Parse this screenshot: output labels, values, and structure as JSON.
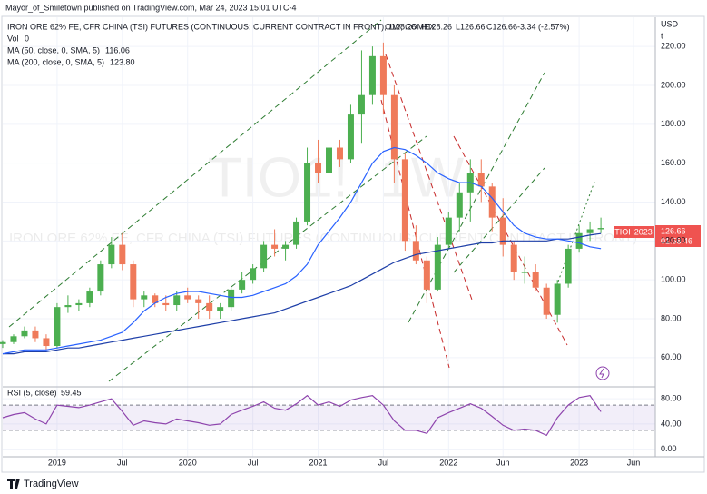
{
  "header": {
    "published": "Mayor_of_Smiletown published on TradingView.com, Mar 24, 2023 15:01 UTC-4",
    "legend_title": "IRON ORE 62% FE, CFR CHINA (TSI) FUTURES (CONTINUOUS: CURRENT CONTRACT IN FRONT), 1W, COMEX",
    "open": "O128.26",
    "high": "H128.26",
    "low": "L126.66",
    "close": "C126.66",
    "change": "-3.34 (-2.57%)",
    "vol_label": "Vol",
    "vol_value": "0",
    "ma50_label": "MA (50, close, 0, SMA, 5)",
    "ma50_value": "116.06",
    "ma200_label": "MA (200, close, 0, SMA, 5)",
    "ma200_value": "123.80",
    "rsi_label": "RSI (5, close)",
    "rsi_value": "59.45",
    "currency": "USD",
    "currency_sub": "t",
    "contract": "TIOH2023",
    "countdown": "01:58:46",
    "watermark_symbol": "TIO1!, 1W",
    "watermark_description": "IRON ORE 62% FE, CFR CHINA (TSI) FUTURES (CONTINUOUS: CURRENT CONTRACT IN FRONT)"
  },
  "footer": {
    "brand": "TradingView"
  },
  "chart_data": {
    "type": "candlestick",
    "up_color": "#4caf50",
    "down_color": "#ef7a5a",
    "ma50_color": "#2962ff",
    "ma200_color": "#1e3fa8",
    "rsi_color": "#8e44ad",
    "x": [
      "2018-08",
      "2018-09",
      "2018-10",
      "2018-11",
      "2018-12",
      "2019-01",
      "2019-02",
      "2019-03",
      "2019-04",
      "2019-05",
      "2019-06",
      "2019-07",
      "2019-08",
      "2019-09",
      "2019-10",
      "2019-11",
      "2019-12",
      "2020-01",
      "2020-02",
      "2020-03",
      "2020-04",
      "2020-05",
      "2020-06",
      "2020-07",
      "2020-08",
      "2020-09",
      "2020-10",
      "2020-11",
      "2020-12",
      "2021-01",
      "2021-02",
      "2021-03",
      "2021-04",
      "2021-05",
      "2021-06",
      "2021-07",
      "2021-08",
      "2021-09",
      "2021-10",
      "2021-11",
      "2021-12",
      "2022-01",
      "2022-02",
      "2022-03",
      "2022-04",
      "2022-05",
      "2022-06",
      "2022-07",
      "2022-08",
      "2022-09",
      "2022-10",
      "2022-11",
      "2022-12",
      "2023-01",
      "2023-02",
      "2023-03"
    ],
    "open": [
      67,
      68,
      71,
      74,
      70,
      66,
      86,
      87,
      88,
      94,
      108,
      118,
      108,
      90,
      92,
      88,
      87,
      92,
      90,
      88,
      84,
      86,
      95,
      100,
      106,
      118,
      116,
      118,
      130,
      160,
      155,
      168,
      162,
      185,
      195,
      215,
      195,
      162,
      120,
      110,
      95,
      118,
      132,
      145,
      155,
      148,
      132,
      118,
      104,
      104,
      96,
      82,
      98,
      116,
      124,
      126
    ],
    "high": [
      69,
      72,
      76,
      76,
      72,
      88,
      92,
      90,
      96,
      110,
      122,
      124,
      110,
      94,
      93,
      92,
      94,
      96,
      92,
      92,
      88,
      96,
      104,
      108,
      120,
      126,
      120,
      132,
      168,
      172,
      172,
      172,
      190,
      218,
      220,
      222,
      200,
      165,
      128,
      112,
      122,
      135,
      150,
      162,
      162,
      150,
      142,
      120,
      112,
      108,
      98,
      100,
      118,
      128,
      130,
      132
    ],
    "low": [
      65,
      67,
      70,
      68,
      64,
      65,
      83,
      84,
      86,
      92,
      106,
      105,
      86,
      86,
      86,
      84,
      84,
      88,
      80,
      80,
      80,
      84,
      93,
      98,
      104,
      112,
      110,
      116,
      128,
      150,
      150,
      158,
      160,
      170,
      190,
      185,
      150,
      115,
      108,
      88,
      94,
      116,
      125,
      130,
      140,
      125,
      112,
      100,
      98,
      94,
      80,
      78,
      96,
      114,
      120,
      124
    ],
    "close": [
      68,
      71,
      74,
      70,
      66,
      86,
      87,
      88,
      94,
      108,
      118,
      108,
      90,
      92,
      88,
      87,
      92,
      90,
      88,
      84,
      86,
      95,
      100,
      106,
      118,
      116,
      118,
      130,
      160,
      155,
      168,
      162,
      185,
      195,
      215,
      195,
      162,
      120,
      110,
      95,
      118,
      132,
      145,
      155,
      148,
      132,
      118,
      104,
      104,
      96,
      82,
      98,
      116,
      124,
      126,
      126.66
    ],
    "ma50": [
      62,
      63,
      64,
      64,
      64,
      65,
      66,
      67,
      68,
      69,
      71,
      73,
      78,
      84,
      88,
      91,
      93,
      94,
      94,
      93,
      92,
      91,
      91,
      92,
      94,
      96,
      98,
      102,
      108,
      118,
      125,
      132,
      140,
      150,
      160,
      166,
      168,
      167,
      164,
      160,
      155,
      152,
      150,
      150,
      148,
      142,
      135,
      128,
      124,
      122,
      121,
      121,
      120,
      119,
      117,
      116.06
    ],
    "ma200": [
      62,
      62,
      63,
      63,
      63,
      64,
      65,
      65,
      66,
      67,
      68,
      69,
      70,
      71,
      72,
      73,
      74,
      75,
      76,
      77,
      78,
      79,
      80,
      81,
      82,
      83,
      85,
      87,
      89,
      91,
      93,
      95,
      97,
      100,
      103,
      106,
      109,
      111,
      113,
      114,
      115,
      116,
      117,
      118,
      119,
      119,
      120,
      120,
      120,
      120,
      120,
      121,
      121,
      122,
      123,
      123.8
    ],
    "rsi": [
      50,
      55,
      58,
      48,
      40,
      70,
      68,
      66,
      70,
      75,
      80,
      60,
      38,
      45,
      42,
      40,
      48,
      45,
      42,
      38,
      40,
      55,
      62,
      68,
      75,
      65,
      62,
      72,
      85,
      70,
      75,
      68,
      78,
      82,
      85,
      70,
      45,
      30,
      30,
      25,
      50,
      58,
      65,
      72,
      65,
      52,
      38,
      30,
      32,
      30,
      22,
      50,
      70,
      82,
      85,
      59.45
    ],
    "rsi_levels": [
      70,
      30
    ],
    "xlim": [
      "2018-08",
      "2023-08"
    ],
    "xticks": [
      {
        "value": "2019-01",
        "label": "2019"
      },
      {
        "value": "2019-07",
        "label": "Jul"
      },
      {
        "value": "2020-01",
        "label": "2020"
      },
      {
        "value": "2020-07",
        "label": "Jul"
      },
      {
        "value": "2021-01",
        "label": "2021"
      },
      {
        "value": "2021-07",
        "label": "Jul"
      },
      {
        "value": "2022-01",
        "label": "2022"
      },
      {
        "value": "2022-06",
        "label": "Jun"
      },
      {
        "value": "2023-01",
        "label": "2023"
      },
      {
        "value": "2023-06",
        "label": "Jun"
      }
    ],
    "ylim": [
      45,
      235
    ],
    "yticks": [
      {
        "value": 60,
        "label": "60.00"
      },
      {
        "value": 80,
        "label": "80.00"
      },
      {
        "value": 100,
        "label": "100.00"
      },
      {
        "value": 120,
        "label": "120.00"
      },
      {
        "value": 140,
        "label": "140.00"
      },
      {
        "value": 160,
        "label": "160.00"
      },
      {
        "value": 180,
        "label": "180.00"
      },
      {
        "value": 200,
        "label": "200.00"
      },
      {
        "value": 220,
        "label": "220.00"
      }
    ],
    "rsi_ylim": [
      -12,
      99
    ],
    "rsi_yticks": [
      {
        "value": 0,
        "label": "0.00"
      },
      {
        "value": 40,
        "label": "40.00"
      },
      {
        "value": 80,
        "label": "80.00"
      }
    ]
  }
}
